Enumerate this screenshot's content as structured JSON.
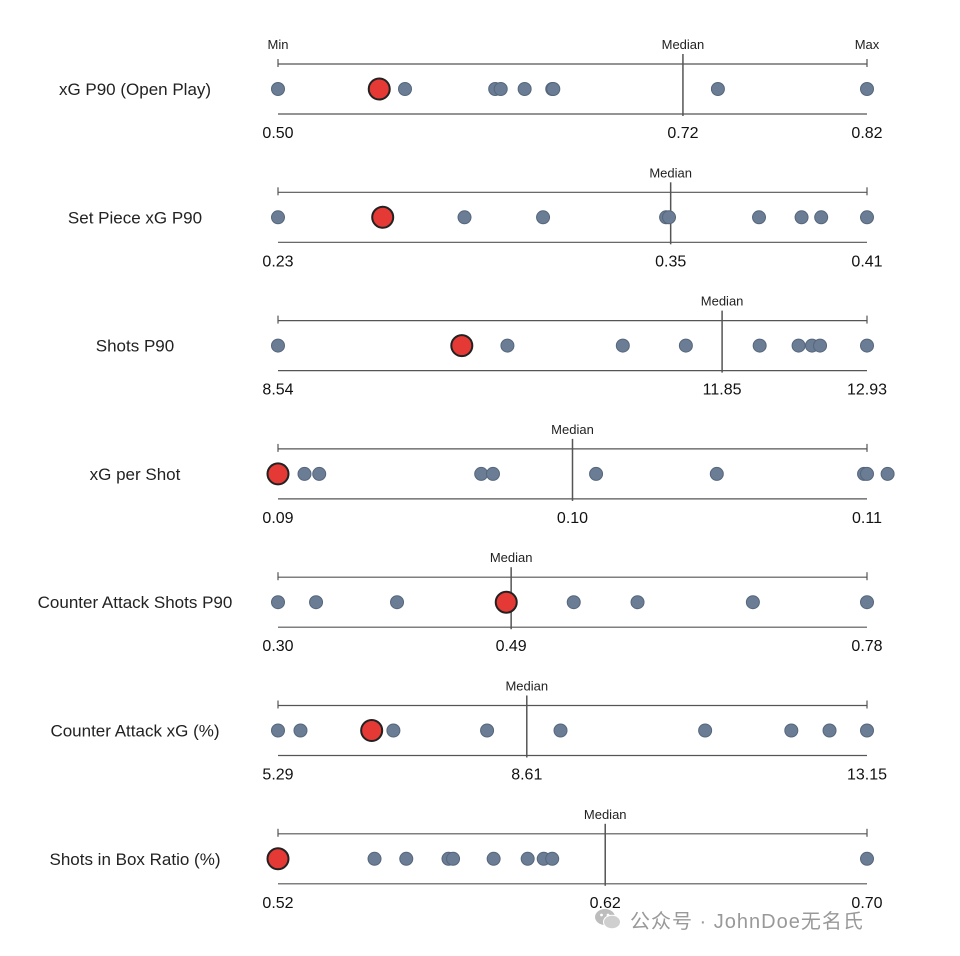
{
  "chart_data": {
    "type": "scatter",
    "subtype": "dot strip plot per metric",
    "scale_markers": {
      "min": "Min",
      "median": "Median",
      "max": "Max"
    },
    "colors": {
      "focus": "#e53935",
      "peers": "#6b7d94"
    },
    "metrics": [
      {
        "label": "xG P90 (Open Play)",
        "min": 0.5,
        "median": 0.72,
        "max": 0.82,
        "tick_labels": [
          "0.50",
          "0.72",
          "0.82"
        ],
        "show_minmax_labels": true,
        "focus_value": 0.555,
        "peer_values": [
          0.5,
          0.569,
          0.618,
          0.621,
          0.634,
          0.649,
          0.64957,
          0.739,
          0.82
        ]
      },
      {
        "label": "Set Piece xG P90",
        "min": 0.23,
        "median": 0.35,
        "max": 0.41,
        "tick_labels": [
          "0.23",
          "0.35",
          "0.41"
        ],
        "show_minmax_labels": false,
        "focus_value": 0.262,
        "peer_values": [
          0.23,
          0.287,
          0.311,
          0.3486,
          0.3495,
          0.377,
          0.39,
          0.396,
          0.41
        ]
      },
      {
        "label": "Shots P90",
        "min": 8.54,
        "median": 11.85,
        "max": 12.93,
        "tick_labels": [
          "8.54",
          "11.85",
          "12.93"
        ],
        "show_minmax_labels": false,
        "focus_value": 9.91,
        "peer_values": [
          8.54,
          10.25,
          11.11,
          11.58,
          12.13,
          12.42,
          12.52,
          12.58,
          12.93
        ]
      },
      {
        "label": "xG per Shot",
        "min": 0.09,
        "median": 0.1,
        "max": 0.11,
        "tick_labels": [
          "0.09",
          "0.10",
          "0.11"
        ],
        "show_minmax_labels": false,
        "focus_value": 0.09,
        "peer_values": [
          0.0909,
          0.0914,
          0.0969,
          0.0973,
          0.1008,
          0.1049,
          0.1099,
          0.1107,
          0.11
        ]
      },
      {
        "label": "Counter Attack Shots P90",
        "min": 0.3,
        "median": 0.49,
        "max": 0.78,
        "tick_labels": [
          "0.30",
          "0.49",
          "0.78"
        ],
        "show_minmax_labels": false,
        "focus_value": 0.486,
        "peer_values": [
          0.3,
          0.331,
          0.397,
          0.541,
          0.593,
          0.687,
          0.78
        ]
      },
      {
        "label": "Counter Attack xG (%)",
        "min": 5.29,
        "median": 8.61,
        "max": 13.15,
        "tick_labels": [
          "5.29",
          "8.61",
          "13.15"
        ],
        "show_minmax_labels": false,
        "focus_value": 6.54,
        "peer_values": [
          5.29,
          5.59,
          6.83,
          8.08,
          9.06,
          10.99,
          12.14,
          12.65,
          13.15
        ]
      },
      {
        "label": "Shots in Box Ratio (%)",
        "min": 0.52,
        "median": 0.62,
        "max": 0.7,
        "tick_labels": [
          "0.52",
          "0.62",
          "0.70"
        ],
        "show_minmax_labels": false,
        "focus_value": 0.52,
        "peer_values": [
          0.5495,
          0.5592,
          0.5721,
          0.5735,
          0.5859,
          0.5963,
          0.6012,
          0.6038,
          0.7
        ]
      }
    ]
  },
  "watermark": {
    "text": "公众号 · JohnDoe无名氏",
    "icon": "wechat-icon"
  }
}
